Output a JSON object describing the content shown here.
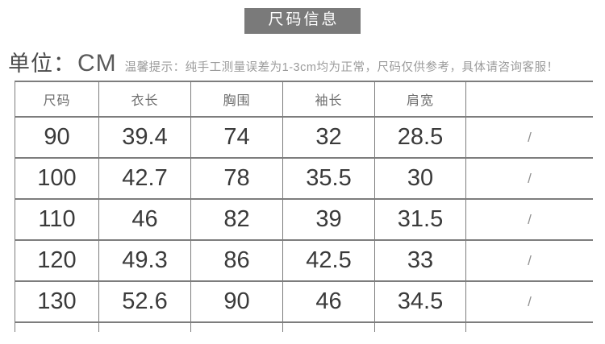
{
  "page": {
    "background": "#ffffff"
  },
  "header": {
    "badge_label": "尺码信息",
    "badge_bg": "#7a7a7a",
    "badge_text_color": "#ffffff"
  },
  "unit_line": {
    "unit_label": "单位：",
    "unit_value": "CM",
    "tip": "温馨提示：纯手工测量误差为1-3cm均为正常，尺码仅供参考，具体请咨询客服！"
  },
  "table": {
    "border_color": "#7d7d7d",
    "headers": [
      "尺码",
      "衣长",
      "胸围",
      "袖长",
      "肩宽",
      ""
    ],
    "rows": [
      [
        "90",
        "39.4",
        "74",
        "32",
        "28.5",
        "/"
      ],
      [
        "100",
        "42.7",
        "78",
        "35.5",
        "30",
        "/"
      ],
      [
        "110",
        "46",
        "82",
        "39",
        "31.5",
        "/"
      ],
      [
        "120",
        "49.3",
        "86",
        "42.5",
        "33",
        "/"
      ],
      [
        "130",
        "52.6",
        "90",
        "46",
        "34.5",
        "/"
      ]
    ]
  },
  "chart_data": {
    "type": "table",
    "title": "尺码信息",
    "unit": "CM",
    "note": "温馨提示：纯手工测量误差为1-3cm均为正常，尺码仅供参考，具体请咨询客服！",
    "columns": [
      "尺码",
      "衣长",
      "胸围",
      "袖长",
      "肩宽",
      ""
    ],
    "rows": [
      [
        "90",
        "39.4",
        "74",
        "32",
        "28.5",
        "/"
      ],
      [
        "100",
        "42.7",
        "78",
        "35.5",
        "30",
        "/"
      ],
      [
        "110",
        "46",
        "82",
        "39",
        "31.5",
        "/"
      ],
      [
        "120",
        "49.3",
        "86",
        "42.5",
        "33",
        "/"
      ],
      [
        "130",
        "52.6",
        "90",
        "46",
        "34.5",
        "/"
      ]
    ]
  }
}
